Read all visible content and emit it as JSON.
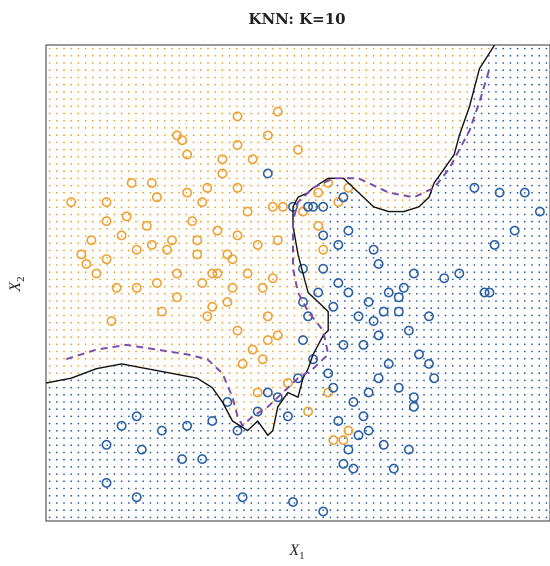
{
  "chart_data": {
    "type": "scatter",
    "title": "KNN: K=10",
    "xlabel": "X",
    "xlabel_sub": "1",
    "ylabel": "X",
    "ylabel_sub": "2",
    "xlim": [
      0,
      100
    ],
    "ylim": [
      0,
      100
    ],
    "grid": false,
    "colors": {
      "orange": "#f0a030",
      "blue": "#2a5fa5",
      "boundary": "#111111",
      "bayes_boundary": "#7b4fa8"
    },
    "series": [
      {
        "class": "orange",
        "points": [
          [
            5,
            67
          ],
          [
            7,
            56
          ],
          [
            8,
            54
          ],
          [
            9,
            59
          ],
          [
            10,
            52
          ],
          [
            12,
            63
          ],
          [
            12,
            55
          ],
          [
            13,
            42
          ],
          [
            14,
            49
          ],
          [
            15,
            60
          ],
          [
            16,
            64
          ],
          [
            17,
            71
          ],
          [
            18,
            49
          ],
          [
            18,
            57
          ],
          [
            20,
            62
          ],
          [
            21,
            71
          ],
          [
            22,
            68
          ],
          [
            22,
            50
          ],
          [
            23,
            44
          ],
          [
            24,
            57
          ],
          [
            25,
            59
          ],
          [
            26,
            47
          ],
          [
            26,
            52
          ],
          [
            27,
            80
          ],
          [
            28,
            77
          ],
          [
            28,
            69
          ],
          [
            29,
            63
          ],
          [
            30,
            59
          ],
          [
            31,
            67
          ],
          [
            31,
            50
          ],
          [
            32,
            43
          ],
          [
            32,
            70
          ],
          [
            33,
            52
          ],
          [
            33,
            45
          ],
          [
            34,
            61
          ],
          [
            34,
            52
          ],
          [
            35,
            73
          ],
          [
            35,
            76
          ],
          [
            36,
            56
          ],
          [
            36,
            46
          ],
          [
            37,
            55
          ],
          [
            37,
            49
          ],
          [
            38,
            60
          ],
          [
            38,
            40
          ],
          [
            39,
            33
          ],
          [
            40,
            65
          ],
          [
            40,
            52
          ],
          [
            41,
            36
          ],
          [
            42,
            27
          ],
          [
            43,
            34
          ],
          [
            43,
            49
          ],
          [
            44,
            38
          ],
          [
            44,
            43
          ],
          [
            45,
            51
          ],
          [
            46,
            59
          ],
          [
            46,
            39
          ],
          [
            48,
            29
          ],
          [
            50,
            78
          ],
          [
            51,
            65
          ],
          [
            52,
            23
          ],
          [
            54,
            69
          ],
          [
            56,
            71
          ],
          [
            58,
            67
          ],
          [
            60,
            70
          ],
          [
            26,
            81
          ],
          [
            38,
            85
          ],
          [
            44,
            81
          ],
          [
            46,
            86
          ],
          [
            47,
            66
          ],
          [
            42,
            58
          ],
          [
            38,
            70
          ],
          [
            41,
            76
          ],
          [
            55,
            57
          ],
          [
            54,
            62
          ],
          [
            57,
            17
          ],
          [
            59,
            17
          ],
          [
            60,
            19
          ],
          [
            45,
            66
          ],
          [
            38,
            79
          ],
          [
            30,
            56
          ],
          [
            21,
            58
          ],
          [
            12,
            67
          ],
          [
            56,
            27
          ]
        ]
      },
      {
        "class": "blue",
        "points": [
          [
            44,
            73
          ],
          [
            49,
            66
          ],
          [
            52,
            66
          ],
          [
            53,
            66
          ],
          [
            55,
            66
          ],
          [
            59,
            68
          ],
          [
            60,
            61
          ],
          [
            65,
            57
          ],
          [
            66,
            54
          ],
          [
            64,
            46
          ],
          [
            62,
            43
          ],
          [
            60,
            48
          ],
          [
            57,
            45
          ],
          [
            58,
            50
          ],
          [
            55,
            53
          ],
          [
            54,
            48
          ],
          [
            52,
            43
          ],
          [
            51,
            38
          ],
          [
            51,
            46
          ],
          [
            59,
            37
          ],
          [
            63,
            37
          ],
          [
            66,
            39
          ],
          [
            67,
            44
          ],
          [
            68,
            48
          ],
          [
            70,
            44
          ],
          [
            71,
            49
          ],
          [
            72,
            40
          ],
          [
            74,
            35
          ],
          [
            76,
            33
          ],
          [
            77,
            30
          ],
          [
            73,
            26
          ],
          [
            70,
            28
          ],
          [
            68,
            33
          ],
          [
            66,
            30
          ],
          [
            64,
            27
          ],
          [
            61,
            25
          ],
          [
            58,
            21
          ],
          [
            57,
            28
          ],
          [
            56,
            31
          ],
          [
            53,
            34
          ],
          [
            50,
            30
          ],
          [
            48,
            22
          ],
          [
            46,
            26
          ],
          [
            44,
            27
          ],
          [
            42,
            23
          ],
          [
            38,
            19
          ],
          [
            36,
            25
          ],
          [
            33,
            21
          ],
          [
            28,
            20
          ],
          [
            27,
            13
          ],
          [
            23,
            19
          ],
          [
            19,
            15
          ],
          [
            18,
            22
          ],
          [
            15,
            20
          ],
          [
            12,
            16
          ],
          [
            12,
            8
          ],
          [
            18,
            5
          ],
          [
            31,
            13
          ],
          [
            39,
            5
          ],
          [
            49,
            4
          ],
          [
            55,
            2
          ],
          [
            59,
            12
          ],
          [
            61,
            11
          ],
          [
            64,
            19
          ],
          [
            67,
            16
          ],
          [
            69,
            11
          ],
          [
            72,
            15
          ],
          [
            73,
            24
          ],
          [
            76,
            43
          ],
          [
            79,
            51
          ],
          [
            82,
            52
          ],
          [
            87,
            48
          ],
          [
            89,
            58
          ],
          [
            93,
            61
          ],
          [
            98,
            65
          ],
          [
            95,
            69
          ],
          [
            90,
            69
          ],
          [
            85,
            70
          ],
          [
            88,
            48
          ],
          [
            73,
            52
          ],
          [
            70,
            47
          ],
          [
            65,
            42
          ],
          [
            63,
            22
          ],
          [
            60,
            15
          ],
          [
            58,
            58
          ],
          [
            55,
            60
          ],
          [
            51,
            53
          ],
          [
            62,
            18
          ]
        ]
      }
    ]
  }
}
